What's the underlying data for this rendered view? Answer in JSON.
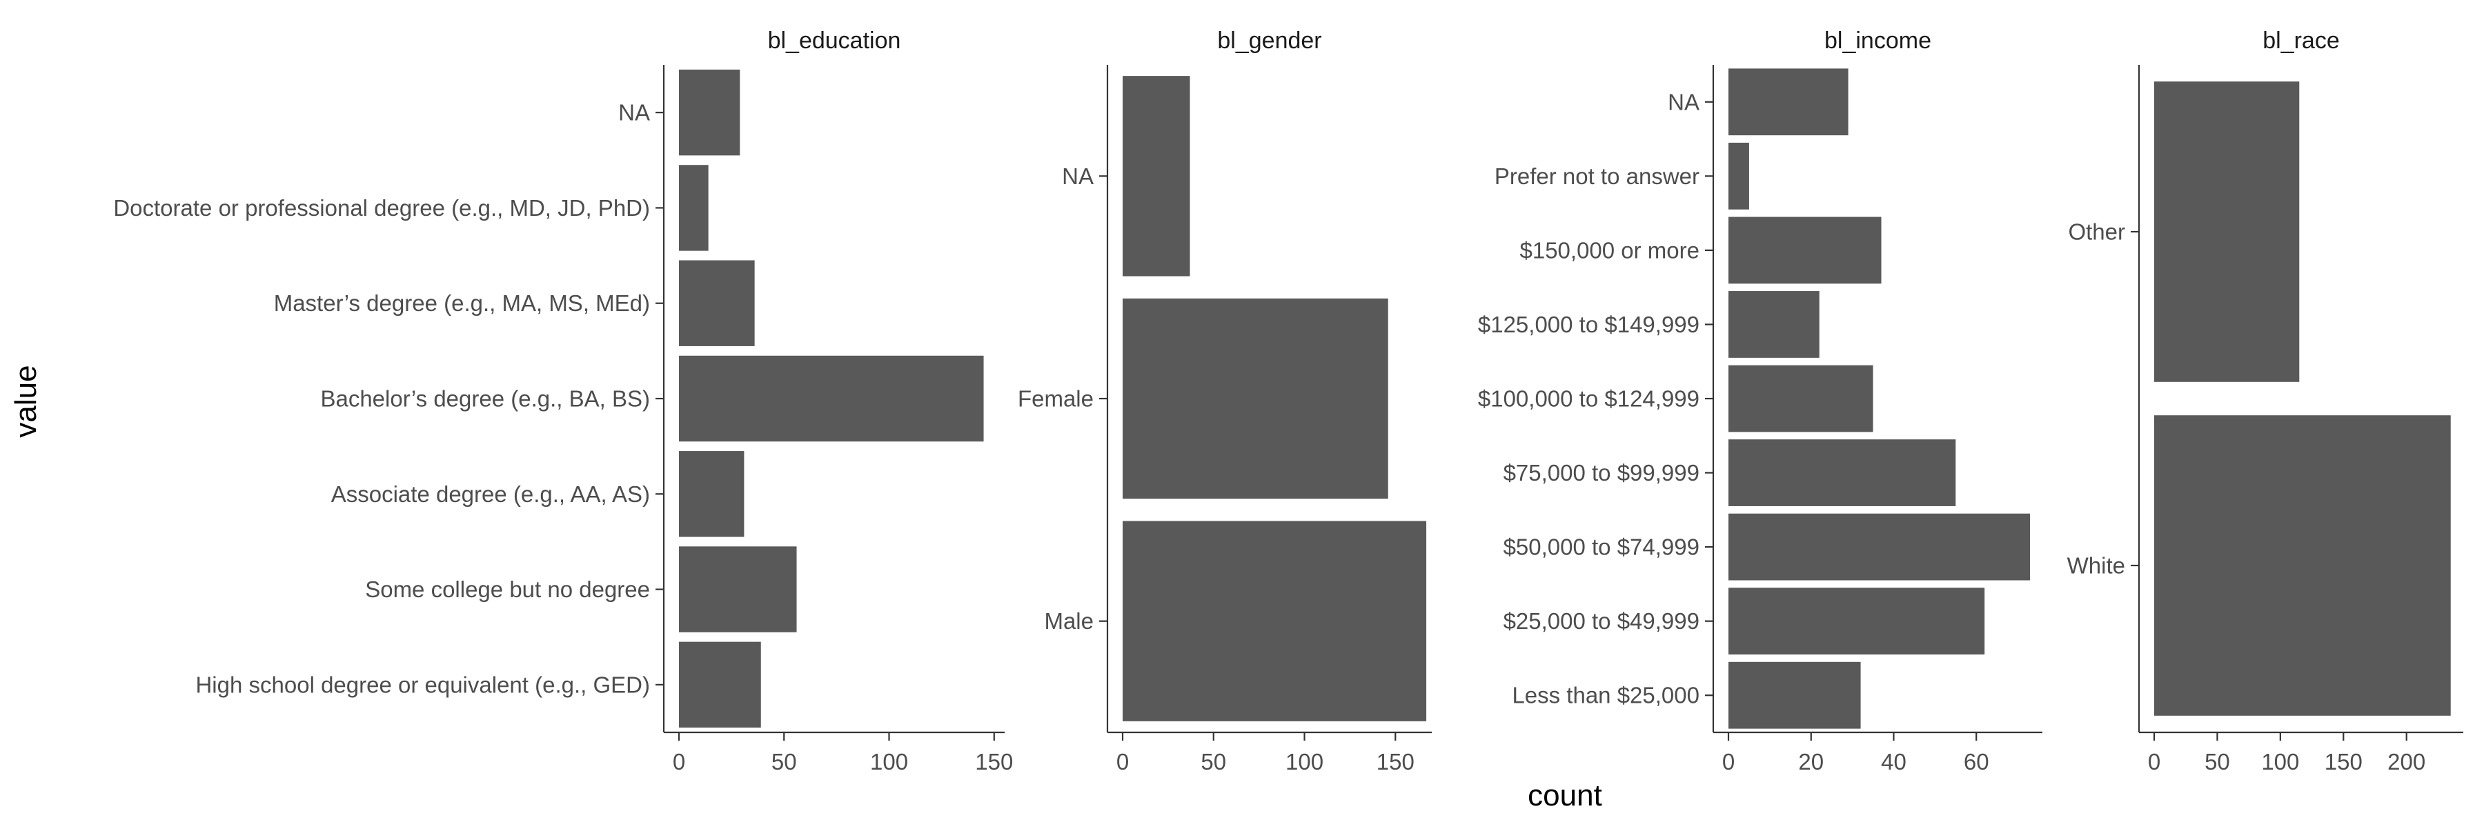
{
  "chart_data": {
    "type": "bar",
    "orientation": "horizontal",
    "layout": "faceted",
    "xlabel": "count",
    "ylabel": "value",
    "bar_color": "#595959",
    "axis_color": "#333333",
    "text_color": "#4d4d4d",
    "grid": false,
    "facets": [
      {
        "title": "bl_education",
        "categories": [
          "NA",
          "Doctorate or professional degree (e.g., MD, JD, PhD)",
          "Master’s degree (e.g., MA, MS, MEd)",
          "Bachelor’s degree (e.g., BA, BS)",
          "Associate degree (e.g., AA, AS)",
          "Some college but no degree",
          "High school degree or equivalent (e.g., GED)"
        ],
        "values": [
          29,
          14,
          36,
          145,
          31,
          56,
          39
        ],
        "xlim": [
          0,
          155
        ],
        "xticks": [
          0,
          50,
          100,
          150
        ]
      },
      {
        "title": "bl_gender",
        "categories": [
          "NA",
          "Female",
          "Male"
        ],
        "values": [
          37,
          146,
          167
        ],
        "xlim": [
          0,
          170
        ],
        "xticks": [
          0,
          50,
          100,
          150
        ]
      },
      {
        "title": "bl_income",
        "categories": [
          "NA",
          "Prefer not to answer",
          "$150,000 or more",
          "$125,000 to $149,999",
          "$100,000 to $124,999",
          "$75,000 to $99,999",
          "$50,000 to $74,999",
          "$25,000 to $49,999",
          "Less than $25,000"
        ],
        "values": [
          29,
          5,
          37,
          22,
          35,
          55,
          73,
          62,
          32
        ],
        "xlim": [
          0,
          76
        ],
        "xticks": [
          0,
          20,
          40,
          60
        ]
      },
      {
        "title": "bl_race",
        "categories": [
          "Other",
          "White"
        ],
        "values": [
          115,
          235
        ],
        "xlim": [
          0,
          245
        ],
        "xticks": [
          0,
          50,
          100,
          150,
          200
        ]
      }
    ]
  }
}
